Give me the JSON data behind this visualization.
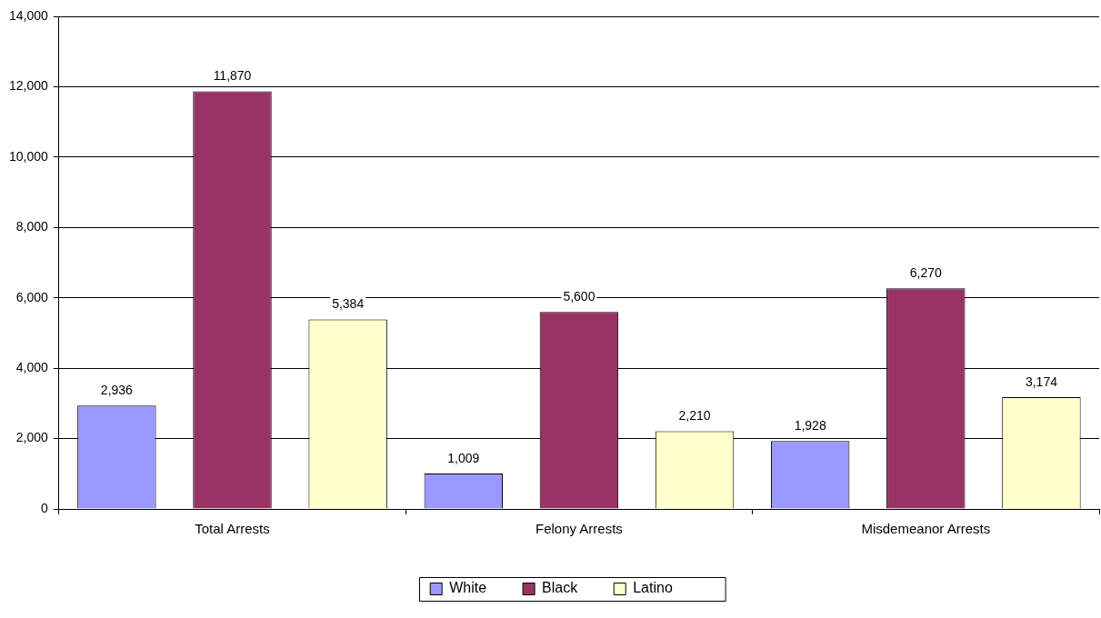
{
  "chart_data": {
    "type": "bar",
    "categories": [
      "Total Arrests",
      "Felony Arrests",
      "Misdemeanor Arrests"
    ],
    "series": [
      {
        "name": "White",
        "color": "#9999ff",
        "values": [
          2936,
          1009,
          1928
        ],
        "value_labels": [
          "2,936",
          "1,009",
          "1,928"
        ]
      },
      {
        "name": "Black",
        "color": "#993366",
        "values": [
          11870,
          5600,
          6270
        ],
        "value_labels": [
          "11,870",
          "5,600",
          "6,270"
        ]
      },
      {
        "name": "Latino",
        "color": "#ffffcc",
        "values": [
          5384,
          2210,
          3174
        ],
        "value_labels": [
          "5,384",
          "2,210",
          "3,174"
        ]
      }
    ],
    "ylim": [
      0,
      14000
    ],
    "yticks": [
      {
        "value": 0,
        "label": "0"
      },
      {
        "value": 2000,
        "label": "2,000"
      },
      {
        "value": 4000,
        "label": "4,000"
      },
      {
        "value": 6000,
        "label": "6,000"
      },
      {
        "value": 8000,
        "label": "8,000"
      },
      {
        "value": 10000,
        "label": "10,000"
      },
      {
        "value": 12000,
        "label": "12,000"
      },
      {
        "value": 14000,
        "label": "14,000"
      }
    ],
    "grid": "y",
    "legend": "bottom"
  }
}
